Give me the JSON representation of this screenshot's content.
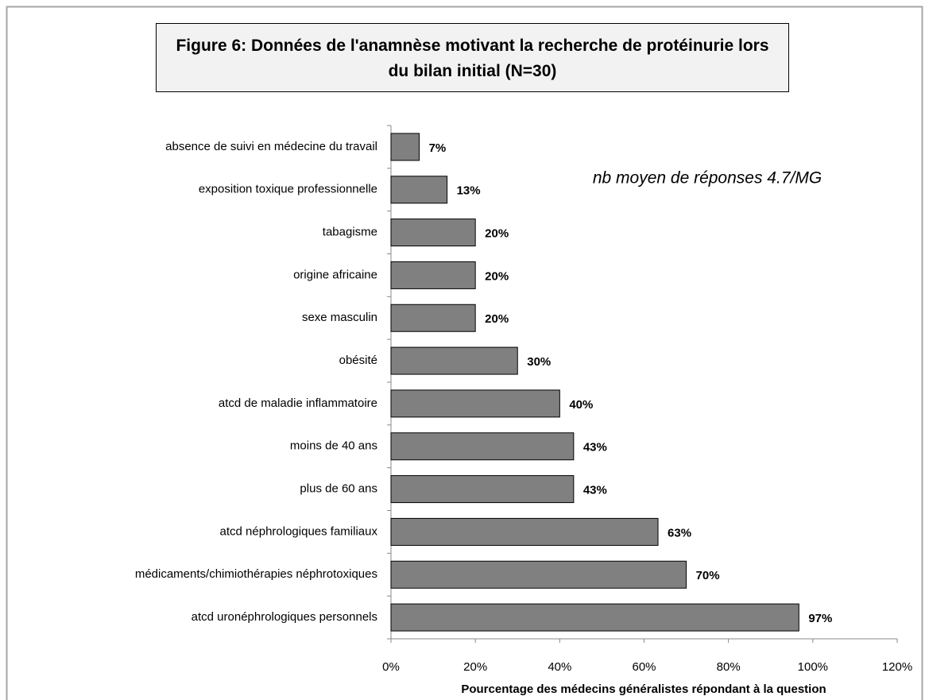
{
  "chart_data": {
    "type": "barh",
    "title": "Figure 6: Données de l'anamnèse motivant la recherche de protéinurie lors du bilan initial (N=30)",
    "annotation": "nb moyen de réponses 4.7/MG",
    "x_label": "Pourcentage des médecins généralistes répondant à la question",
    "categories": [
      "absence de suivi en médecine du travail",
      "exposition toxique professionnelle",
      "tabagisme",
      "origine africaine",
      "sexe masculin",
      "obésité",
      "atcd de maladie inflammatoire",
      "moins de 40 ans",
      "plus de 60 ans",
      "atcd néphrologiques familiaux",
      "médicaments/chimiothérapies néphrotoxiques",
      "atcd uronéphrologiques personnels"
    ],
    "values": [
      6.7,
      13.3,
      20,
      20,
      20,
      30,
      40,
      43.3,
      43.3,
      63.3,
      70,
      96.7
    ],
    "value_labels": [
      "7%",
      "13%",
      "20%",
      "20%",
      "20%",
      "30%",
      "40%",
      "43%",
      "43%",
      "63%",
      "70%",
      "97%"
    ],
    "color": "#808080",
    "xlim": [
      0,
      120
    ],
    "xticks": [
      {
        "value": 0,
        "label": "0%"
      },
      {
        "value": 20,
        "label": "20%"
      },
      {
        "value": 40,
        "label": "40%"
      },
      {
        "value": 60,
        "label": "60%"
      },
      {
        "value": 80,
        "label": "80%"
      },
      {
        "value": 100,
        "label": "100%"
      },
      {
        "value": 120,
        "label": "120%"
      }
    ],
    "grid": false
  }
}
